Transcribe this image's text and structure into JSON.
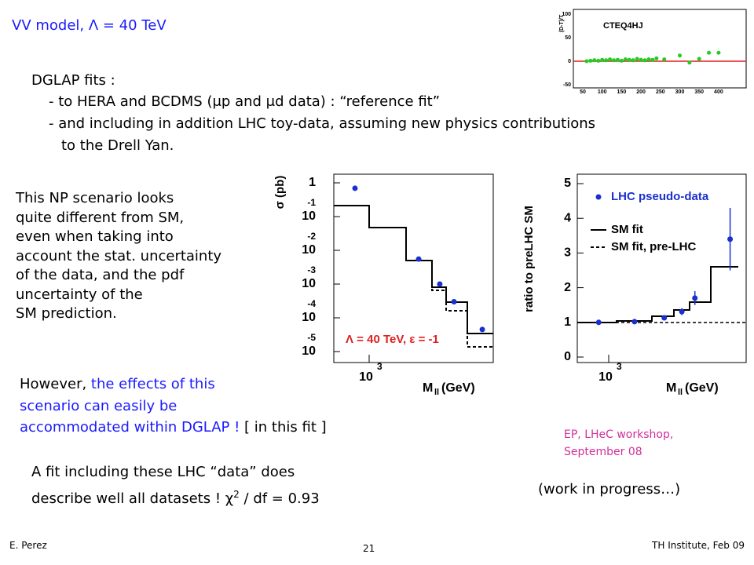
{
  "title": {
    "text": "VV model, Λ = 40 TeV"
  },
  "intro": {
    "heading": "DGLAP fits :",
    "items": [
      "- to HERA and BCDMS (μp and μd data) : “reference fit”",
      "- and including in addition LHC toy-data, assuming new physics contributions",
      "to the Drell Yan."
    ]
  },
  "left_text": [
    "This NP scenario looks",
    "quite different from SM,",
    "even when taking into",
    "account the stat. uncertainty",
    "of the data, and the pdf",
    "uncertainty of the",
    "SM prediction."
  ],
  "however": {
    "lead": "However, ",
    "blue": [
      "the effects of this",
      "scenario can easily be",
      "accommodated within DGLAP !"
    ],
    "tail": " [ in this fit ]"
  },
  "fit_text": {
    "line1": "A fit including these LHC “data” does",
    "line2": "describe well all datasets !  χ",
    "sup": "2",
    "line2_end": " / df = 0.93"
  },
  "credit": [
    "EP, LHeC workshop,",
    "September 08"
  ],
  "progress": "(work in progress…)",
  "footer": {
    "author": "E. Perez",
    "page": "21",
    "venue": "TH Institute, Feb 09"
  },
  "cteq": {
    "label": "CTEQ4HJ",
    "ylabel": "(D-T)/T",
    "yticks": [
      100,
      50,
      0,
      -50
    ],
    "xticks": [
      50,
      100,
      150,
      200,
      250,
      300,
      350,
      400
    ],
    "x": [
      60,
      70,
      80,
      90,
      100,
      110,
      120,
      130,
      140,
      150,
      160,
      170,
      180,
      190,
      200,
      210,
      220,
      230,
      240,
      260,
      300,
      325,
      350,
      375,
      400
    ],
    "values": [
      0,
      1,
      2,
      1,
      3,
      2,
      4,
      2,
      3,
      1,
      4,
      3,
      2,
      5,
      3,
      2,
      4,
      3,
      6,
      4,
      12,
      -3,
      5,
      18,
      18
    ]
  },
  "sigma_plot": {
    "ylabel": "σ (pb)",
    "xlabel": "M",
    "xlabel_sub": "ll",
    "xlabel_end": " (GeV)",
    "legend": "Λ = 40 TeV, ε = -1",
    "yticks": [
      {
        "value": 1,
        "label": "1"
      },
      {
        "value": 0.1,
        "label": "10",
        "exponent": "-1"
      },
      {
        "value": 0.01,
        "label": "10",
        "exponent": "-2"
      },
      {
        "value": 0.001,
        "label": "10",
        "exponent": "-3"
      },
      {
        "value": 0.0001,
        "label": "10",
        "exponent": "-4"
      },
      {
        "value": 1e-05,
        "label": "10",
        "exponent": "-5"
      }
    ],
    "xticks": [
      {
        "value": 1000,
        "label": "10",
        "exponent": "3"
      }
    ],
    "x": [
      835,
      1880,
      2460,
      2950,
      4230
    ],
    "values": [
      0.69,
      0.0055,
      0.001,
      0.0003,
      4.5e-05
    ]
  },
  "ratio_plot": {
    "ylabel": "ratio to preLHC SM",
    "xlabel": "M",
    "xlabel_sub": "ll",
    "xlabel_end": " (GeV)",
    "legend": [
      "LHC pseudo-data",
      "SM fit",
      "SM fit, pre-LHC"
    ],
    "yticks": [
      0,
      1,
      2,
      3,
      4,
      5
    ],
    "xticks": [
      {
        "value": 1000,
        "label": "10",
        "exponent": "3"
      }
    ],
    "x": [
      880,
      1390,
      2030,
      2540,
      3000,
      4700
    ],
    "values": [
      1.0,
      1.02,
      1.13,
      1.31,
      1.7,
      3.4
    ],
    "errors": [
      0.03,
      0.04,
      0.06,
      0.1,
      0.2,
      0.9
    ]
  }
}
